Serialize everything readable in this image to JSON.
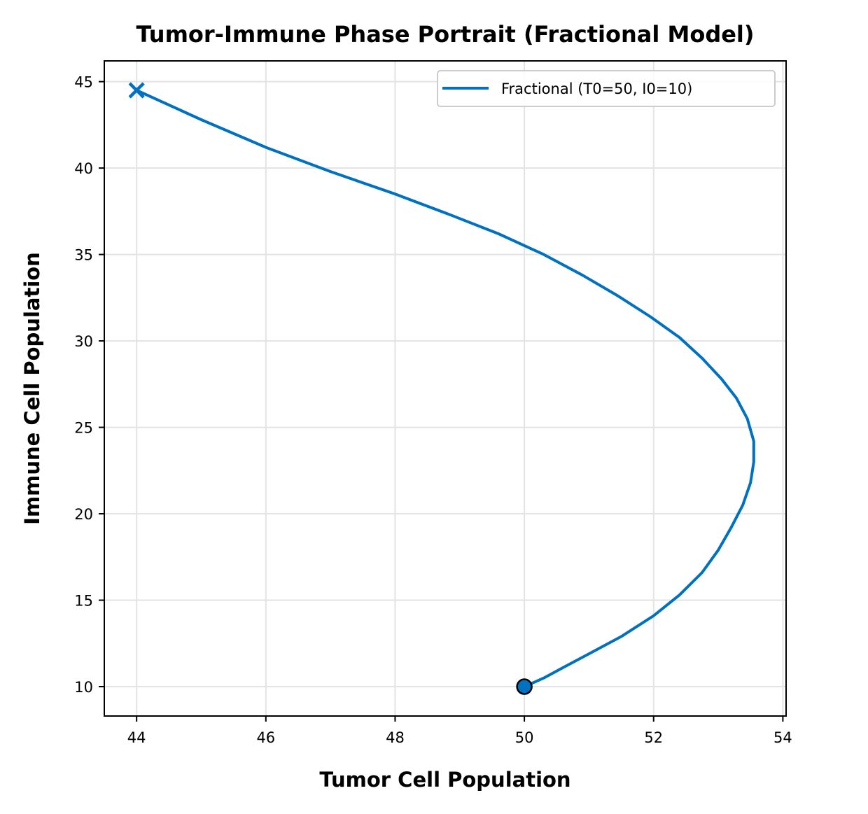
{
  "chart_data": {
    "type": "line",
    "title": "Tumor-Immune Phase Portrait (Fractional Model)",
    "xlabel": "Tumor Cell Population",
    "ylabel": "Immune Cell Population",
    "xlim": [
      43.5,
      54.05
    ],
    "ylim": [
      8.3,
      46.2
    ],
    "xticks": [
      44,
      46,
      48,
      50,
      52,
      54
    ],
    "yticks": [
      10,
      15,
      20,
      25,
      30,
      35,
      40,
      45
    ],
    "grid": true,
    "legend_position": "top-right",
    "series": [
      {
        "name": "Fractional (T0=50, I0=10)",
        "color": "#0070c0",
        "x": [
          50.0,
          50.3,
          50.6,
          51.0,
          51.5,
          52.0,
          52.4,
          52.75,
          53.0,
          53.2,
          53.38,
          53.5,
          53.55,
          53.55,
          53.45,
          53.28,
          53.05,
          52.75,
          52.4,
          51.95,
          51.45,
          50.9,
          50.3,
          49.6,
          48.85,
          48.0,
          47.0,
          46.0,
          45.0,
          44.0
        ],
        "y": [
          10.0,
          10.5,
          11.1,
          11.9,
          12.9,
          14.1,
          15.3,
          16.6,
          17.9,
          19.2,
          20.5,
          21.8,
          23.0,
          24.2,
          25.5,
          26.7,
          27.8,
          29.0,
          30.2,
          31.4,
          32.6,
          33.8,
          35.0,
          36.2,
          37.3,
          38.5,
          39.8,
          41.2,
          42.8,
          44.5
        ]
      }
    ],
    "start_marker": {
      "x": 50,
      "y": 10
    },
    "end_marker": {
      "x": 44,
      "y": 44.5
    }
  }
}
